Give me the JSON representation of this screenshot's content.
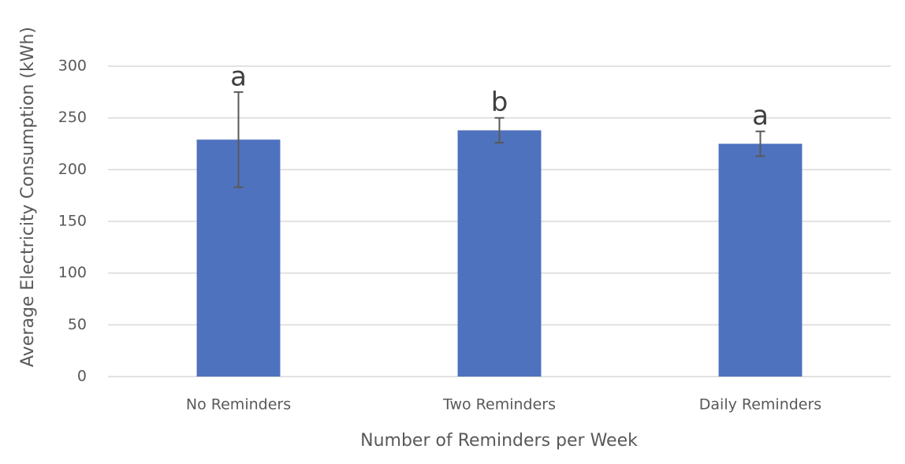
{
  "chart_data": {
    "type": "bar",
    "categories": [
      "No Reminders",
      "Two Reminders",
      "Daily Reminders"
    ],
    "values": [
      229,
      238,
      225
    ],
    "errors": [
      46,
      12,
      12
    ],
    "annotations": [
      "a",
      "b",
      "a"
    ],
    "color": "#4e72be",
    "error_color": "#595959",
    "ylim": [
      0,
      300
    ],
    "yticks": [
      0,
      50,
      100,
      150,
      200,
      250,
      300
    ],
    "grid": true,
    "x_label": "Number of Reminders per Week",
    "y_label": "Average Electricity Consumption (kWh)"
  }
}
